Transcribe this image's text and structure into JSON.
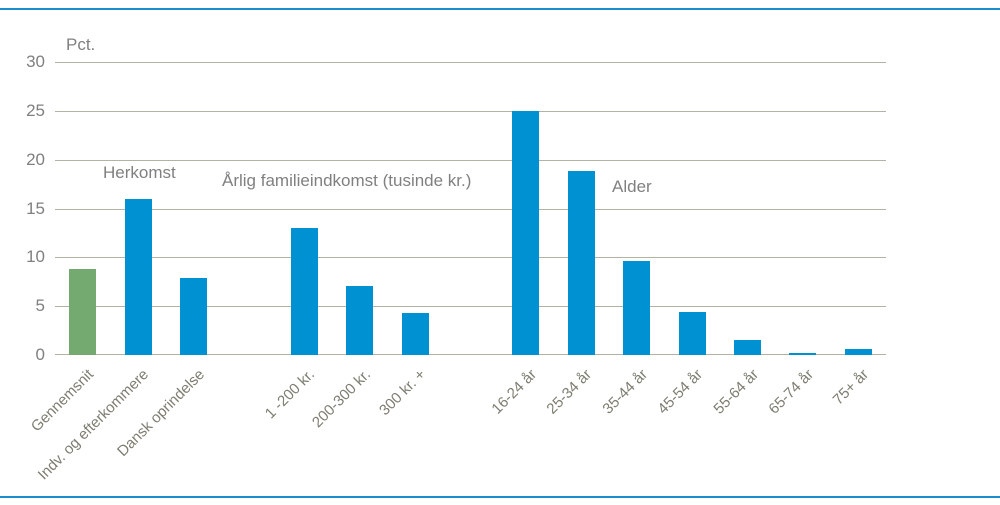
{
  "chart_data": {
    "type": "bar",
    "title": "",
    "unit_label": "Pct.",
    "xlabel": "",
    "ylabel": "Pct.",
    "ylim": [
      0,
      30
    ],
    "ytick_step": 5,
    "grid": true,
    "legend_position": "none",
    "colors": {
      "bar_blue": "#0091d2",
      "bar_green": "#74aa70",
      "gridline": "#b3b3a5",
      "frame_rule": "#1b8ecd",
      "axis_text": "#808080",
      "tick_text": "#7d7d71"
    },
    "groups": [
      {
        "label": "",
        "gap_before": false,
        "bars": [
          {
            "category": "Gennemsnit",
            "value": 8.8,
            "color": "#74aa70"
          }
        ]
      },
      {
        "label": "Herkomst",
        "gap_before": false,
        "bars": [
          {
            "category": "Indv. og efterkommere",
            "value": 16.0
          },
          {
            "category": "Dansk oprindelse",
            "value": 7.9
          }
        ]
      },
      {
        "label": "Årlig familieindkomst (tusinde kr.)",
        "gap_before": true,
        "bars": [
          {
            "category": "1 -200 kr.",
            "value": 13.0
          },
          {
            "category": "200-300 kr.",
            "value": 7.1
          },
          {
            "category": "300 kr. +",
            "value": 4.3
          }
        ]
      },
      {
        "label": "Alder",
        "gap_before": true,
        "bars": [
          {
            "category": "16-24 år",
            "value": 25.0
          },
          {
            "category": "25-34 år",
            "value": 18.8
          },
          {
            "category": "35-44 år",
            "value": 9.6
          },
          {
            "category": "45-54 år",
            "value": 4.4
          },
          {
            "category": "55-64 år",
            "value": 1.5
          },
          {
            "category": "65-74 år",
            "value": 0.2
          },
          {
            "category": "75+ år",
            "value": 0.6
          }
        ]
      }
    ]
  }
}
